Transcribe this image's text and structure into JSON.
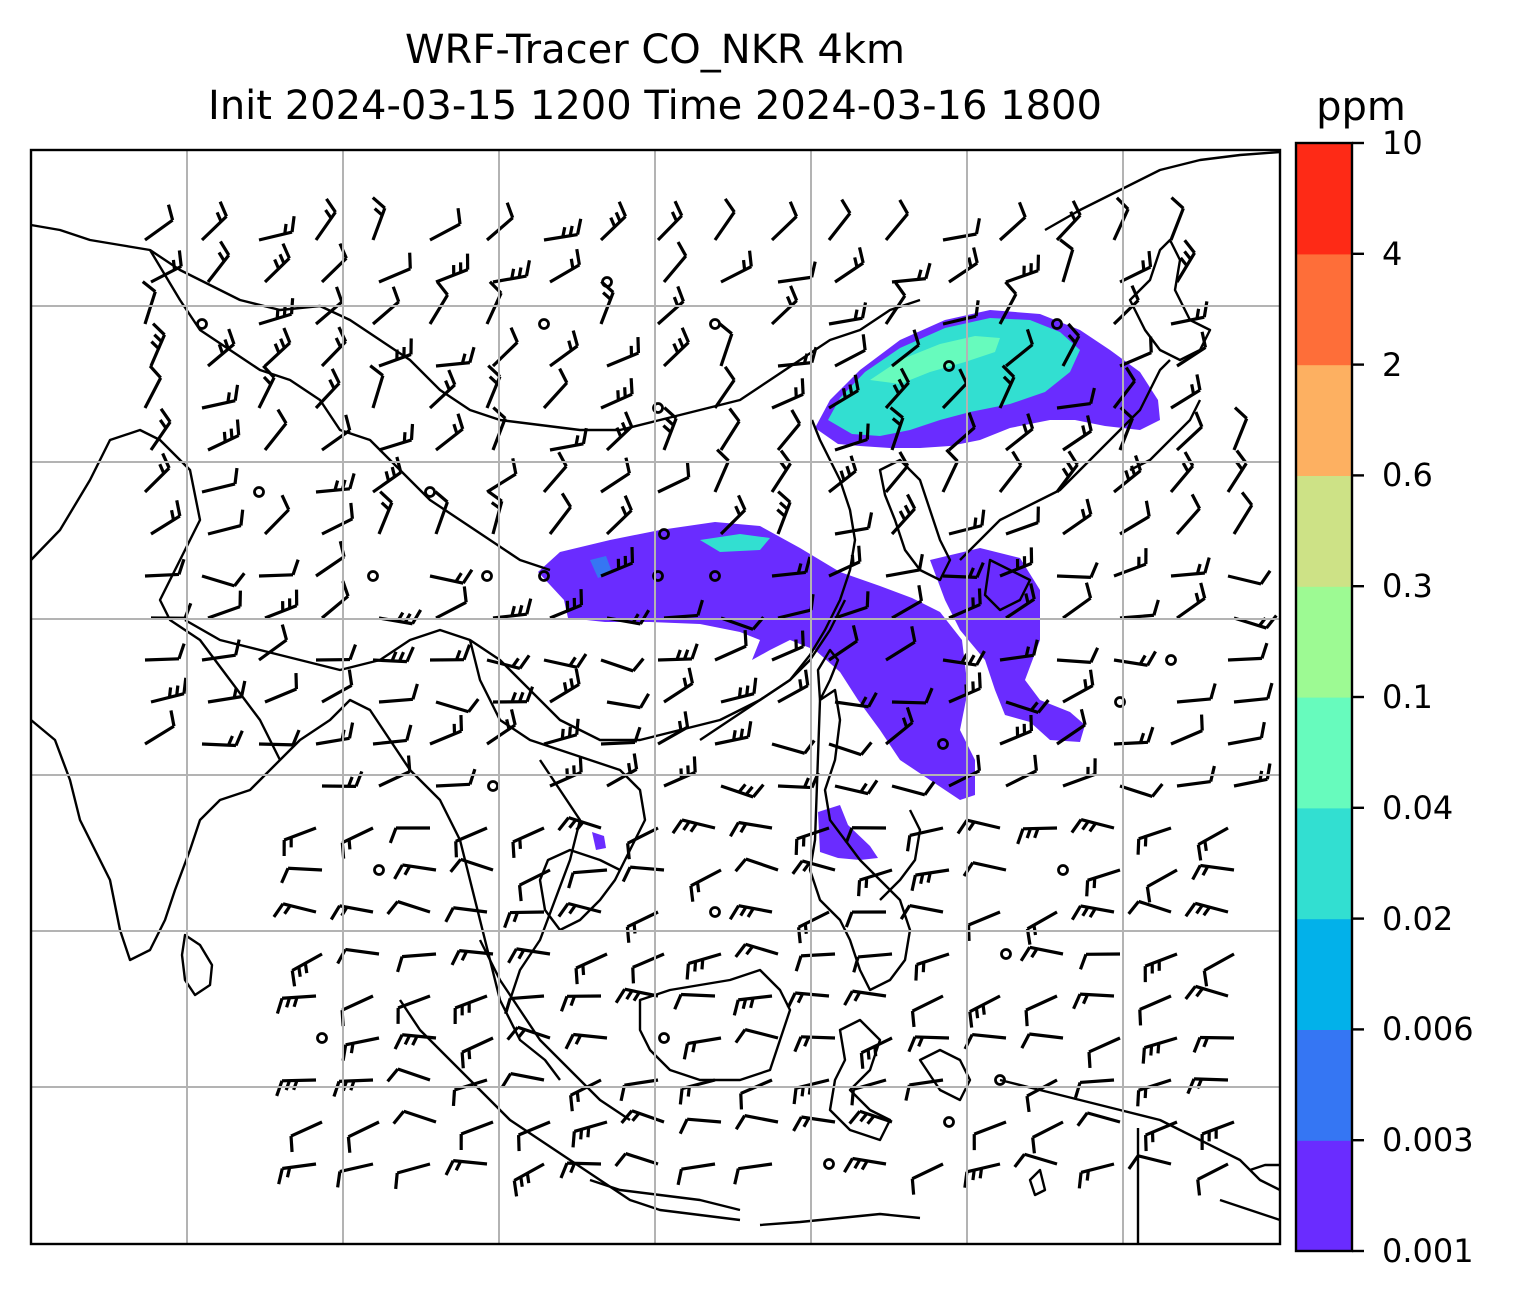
{
  "title": {
    "line1": "WRF-Tracer CO_NKR 4km",
    "line2": "Init 2024-03-15 1200 Time 2024-03-16 1800"
  },
  "colorbar": {
    "unit": "ppm",
    "levels": [
      "0.001",
      "0.003",
      "0.006",
      "0.02",
      "0.04",
      "0.1",
      "0.3",
      "0.6",
      "2",
      "4",
      "10"
    ],
    "colors": [
      "#6a2cff",
      "#3576f3",
      "#02b1ea",
      "#32dfd1",
      "#67fbbd",
      "#9dfa93",
      "#cde286",
      "#fdb061",
      "#fe6e39",
      "#fe2a16"
    ]
  },
  "map": {
    "gridlines": true,
    "plume_colors": {
      "low": "#6a2cff",
      "mid": "#3576f3",
      "cyan": "#32dfd1",
      "green": "#67fbbd"
    }
  }
}
